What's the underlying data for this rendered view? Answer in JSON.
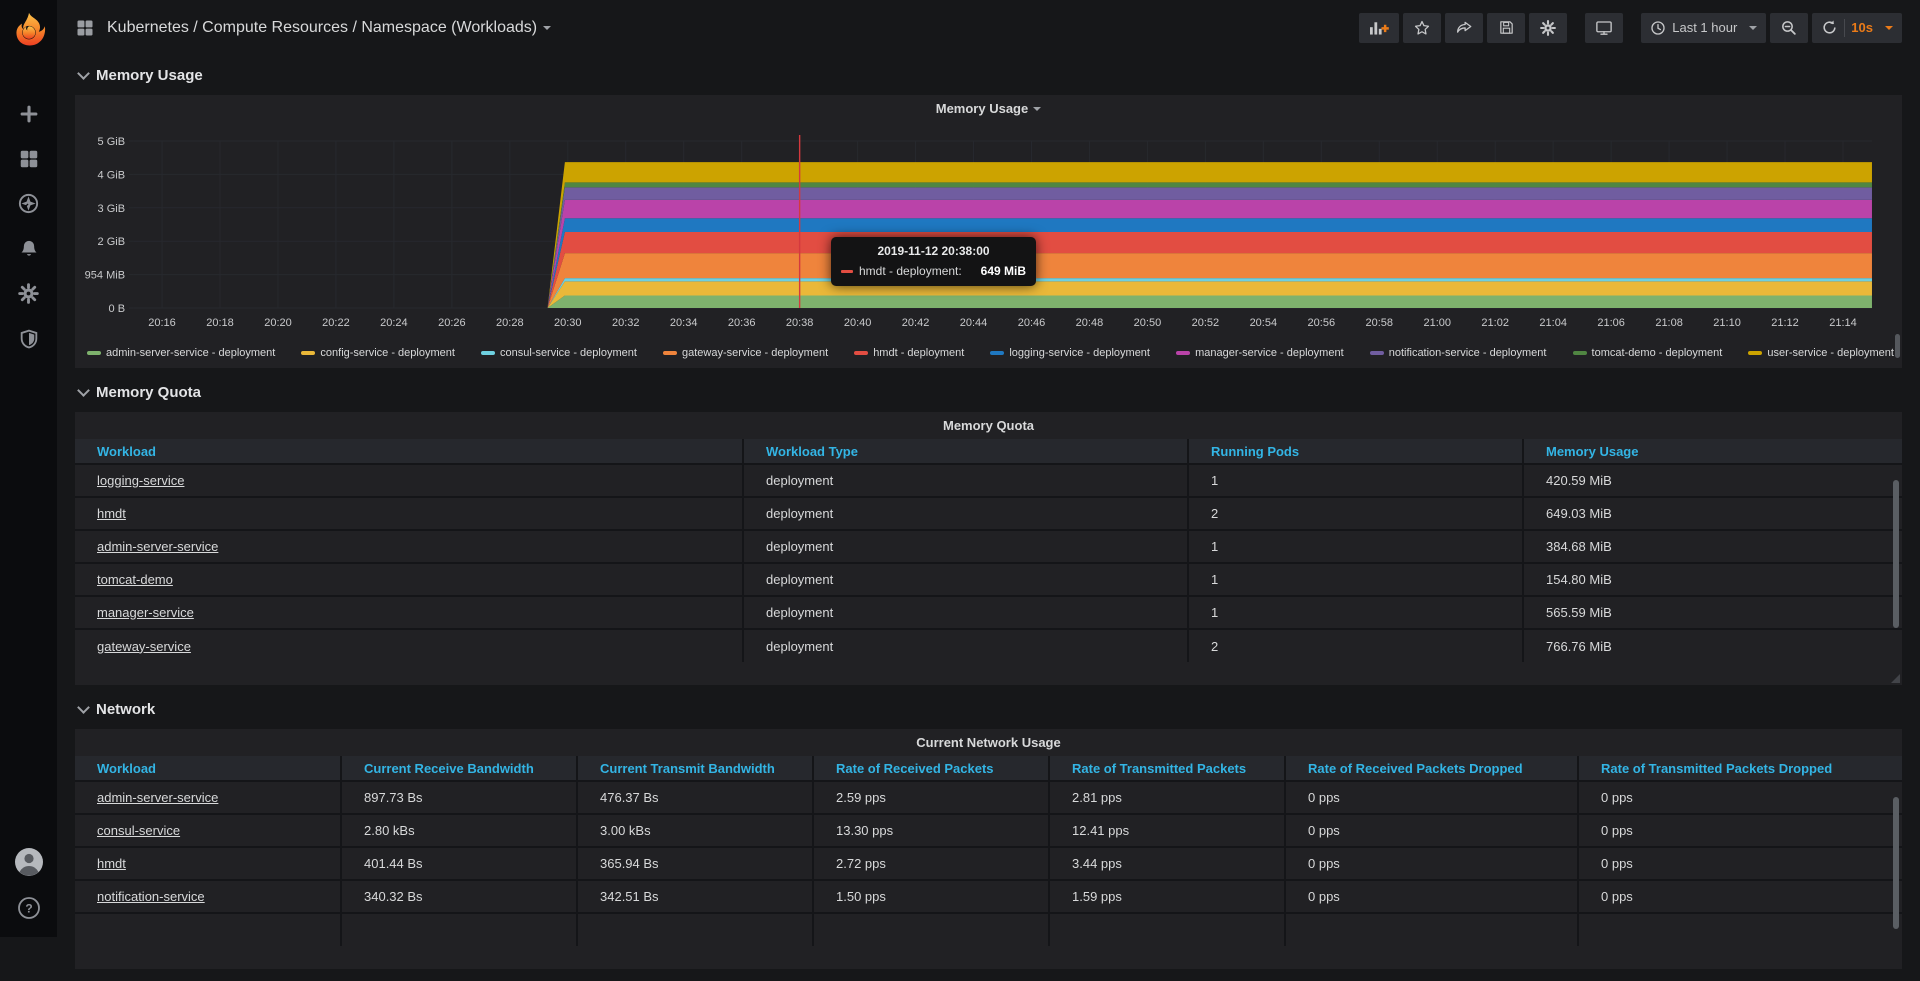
{
  "colors": {
    "accent_orange": "#eb7b18",
    "table_header_blue": "#33b5e5",
    "crosshair_red": "#d4393e",
    "grid_line": "#27292e",
    "axis_text": "#c9cacc"
  },
  "sidebar": {
    "icons": [
      "plus-icon",
      "dashboards-grid-icon",
      "explore-compass-icon",
      "alerting-bell-icon",
      "configuration-gear-icon",
      "server-admin-shield-icon"
    ],
    "bottom_icons": [
      "user-avatar",
      "help-icon"
    ]
  },
  "navbar": {
    "title": "Kubernetes / Compute Resources / Namespace (Workloads)",
    "actions": [
      "add-panel",
      "mark-favorite",
      "share-dashboard",
      "save-dashboard",
      "dashboard-settings"
    ],
    "tv_button": "cycle-view-mode",
    "time_range_label": "Last 1 hour",
    "zoom_out_button": "zoom-out-time-range",
    "refresh_label": "10s"
  },
  "sections": {
    "memory_usage": "Memory Usage",
    "memory_quota": "Memory Quota",
    "network": "Network"
  },
  "panels": {
    "memory_usage_title": "Memory Usage",
    "memory_quota_title": "Memory Quota",
    "network_title": "Current Network Usage"
  },
  "tooltip": {
    "timestamp": "2019-11-12 20:38:00",
    "series_label": "hmdt - deployment:",
    "value": "649 MiB",
    "series_color": "#E24D42"
  },
  "chart_data": {
    "type": "area",
    "stacked": true,
    "title": "Memory Usage",
    "ylabel": "",
    "xlabel": "",
    "y_ticks": [
      "0 B",
      "954 MiB",
      "2 GiB",
      "3 GiB",
      "4 GiB",
      "5 GiB"
    ],
    "ylim_mib": [
      0,
      5120
    ],
    "x_ticks": [
      "20:16",
      "20:18",
      "20:20",
      "20:22",
      "20:24",
      "20:26",
      "20:28",
      "20:30",
      "20:32",
      "20:34",
      "20:36",
      "20:38",
      "20:40",
      "20:42",
      "20:44",
      "20:46",
      "20:48",
      "20:50",
      "20:52",
      "20:54",
      "20:56",
      "20:58",
      "21:00",
      "21:02",
      "21:04",
      "21:06",
      "21:08",
      "21:10",
      "21:12",
      "21:14"
    ],
    "x_axis_start": "20:15",
    "x_axis_end": "21:15",
    "x_total_min": 60,
    "rise_start_min": 14.3,
    "rise_end_min": 14.9,
    "crosshair_time_min": 23,
    "legend_position": "bottom",
    "grid": true,
    "series": [
      {
        "name": "admin-server-service - deployment",
        "color": "#7EB26D",
        "steady_mib": 384.68
      },
      {
        "name": "config-service - deployment",
        "color": "#EAB839",
        "steady_mib": 430
      },
      {
        "name": "consul-service - deployment",
        "color": "#6ED0E0",
        "steady_mib": 100
      },
      {
        "name": "gateway-service - deployment",
        "color": "#EF843C",
        "steady_mib": 766.76
      },
      {
        "name": "hmdt - deployment",
        "color": "#E24D42",
        "steady_mib": 649.03
      },
      {
        "name": "logging-service - deployment",
        "color": "#1F78C1",
        "steady_mib": 420.59
      },
      {
        "name": "manager-service - deployment",
        "color": "#BA43A9",
        "steady_mib": 565.59
      },
      {
        "name": "notification-service - deployment",
        "color": "#705DA0",
        "steady_mib": 380
      },
      {
        "name": "tomcat-demo - deployment",
        "color": "#508642",
        "steady_mib": 154.8
      },
      {
        "name": "user-service - deployment",
        "color": "#CCA300",
        "steady_mib": 620
      }
    ]
  },
  "memory_quota_table": {
    "columns": [
      "Workload",
      "Workload Type",
      "Running Pods",
      "Memory Usage"
    ],
    "rows": [
      [
        "logging-service",
        "deployment",
        "1",
        "420.59 MiB"
      ],
      [
        "hmdt",
        "deployment",
        "2",
        "649.03 MiB"
      ],
      [
        "admin-server-service",
        "deployment",
        "1",
        "384.68 MiB"
      ],
      [
        "tomcat-demo",
        "deployment",
        "1",
        "154.80 MiB"
      ],
      [
        "manager-service",
        "deployment",
        "1",
        "565.59 MiB"
      ],
      [
        "gateway-service",
        "deployment",
        "2",
        "766.76 MiB"
      ]
    ]
  },
  "network_table": {
    "columns": [
      "Workload",
      "Current Receive Bandwidth",
      "Current Transmit Bandwidth",
      "Rate of Received Packets",
      "Rate of Transmitted Packets",
      "Rate of Received Packets Dropped",
      "Rate of Transmitted Packets Dropped"
    ],
    "rows": [
      [
        "admin-server-service",
        "897.73 Bs",
        "476.37 Bs",
        "2.59 pps",
        "2.81 pps",
        "0 pps",
        "0 pps"
      ],
      [
        "consul-service",
        "2.80 kBs",
        "3.00 kBs",
        "13.30 pps",
        "12.41 pps",
        "0 pps",
        "0 pps"
      ],
      [
        "hmdt",
        "401.44 Bs",
        "365.94 Bs",
        "2.72 pps",
        "3.44 pps",
        "0 pps",
        "0 pps"
      ],
      [
        "notification-service",
        "340.32 Bs",
        "342.51 Bs",
        "1.50 pps",
        "1.59 pps",
        "0 pps",
        "0 pps"
      ]
    ]
  }
}
